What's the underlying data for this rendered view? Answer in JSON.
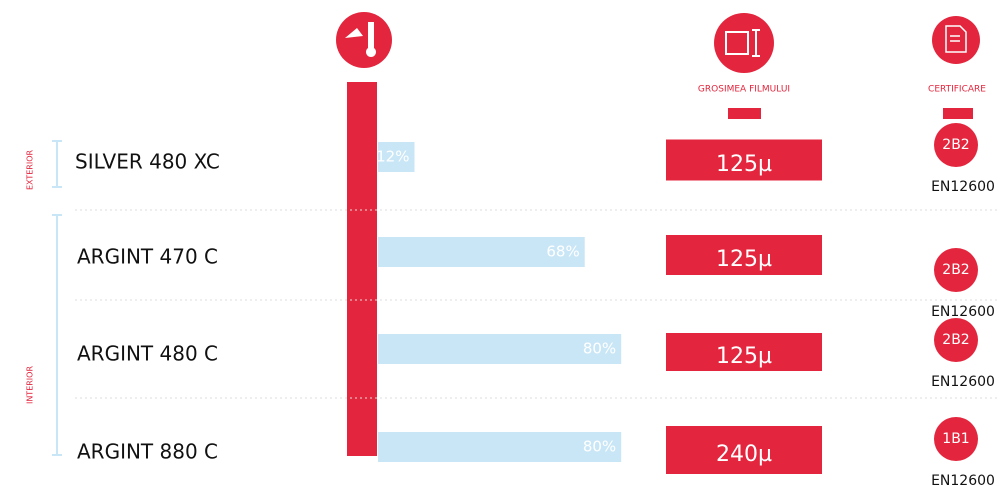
{
  "headers": {
    "thickness": "GROSIMEA FILMULUI",
    "certification": "CERTIFICARE"
  },
  "zones": {
    "exterior": "EXTERIOR",
    "interior": "INTERIOR"
  },
  "rows": [
    {
      "name": "SILVER 480 XC",
      "value": 12,
      "value_label": "12%",
      "thickness": "125µ",
      "class": "2B2",
      "standard": "EN12600"
    },
    {
      "name": "ARGINT 470 C",
      "value": 68,
      "value_label": "68%",
      "thickness": "125µ",
      "class": "2B2",
      "standard": "EN12600"
    },
    {
      "name": "ARGINT 480 C",
      "value": 80,
      "value_label": "80%",
      "thickness": "125µ",
      "class": "2B2",
      "standard": "EN12600"
    },
    {
      "name": "ARGINT 880 C",
      "value": 80,
      "value_label": "80%",
      "thickness": "240µ",
      "class": "1B1",
      "standard": "EN12600"
    }
  ]
}
